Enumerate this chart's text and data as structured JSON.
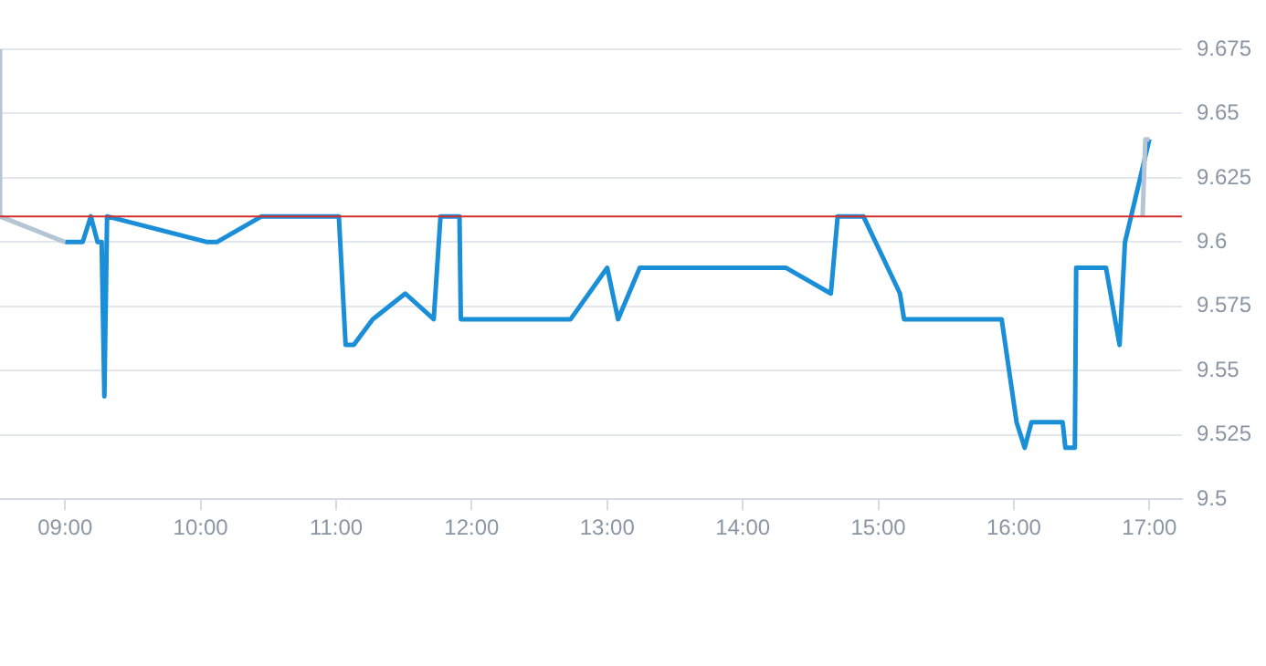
{
  "chart_data": {
    "type": "line",
    "xlim": [
      8.52,
      17.24
    ],
    "ylim": [
      9.5,
      9.675
    ],
    "xticks": [
      {
        "value": 9,
        "label": "09:00"
      },
      {
        "value": 10,
        "label": "10:00"
      },
      {
        "value": 11,
        "label": "11:00"
      },
      {
        "value": 12,
        "label": "12:00"
      },
      {
        "value": 13,
        "label": "13:00"
      },
      {
        "value": 14,
        "label": "14:00"
      },
      {
        "value": 15,
        "label": "15:00"
      },
      {
        "value": 16,
        "label": "16:00"
      },
      {
        "value": 17,
        "label": "17:00"
      }
    ],
    "yticks": [
      9.5,
      9.525,
      9.55,
      9.575,
      9.6,
      9.625,
      9.65,
      9.675
    ],
    "grid": "y",
    "legend": false,
    "marker": "none",
    "line_style": "solid",
    "ref_lines": [
      {
        "axis": "y",
        "value": 9.61,
        "color": "#d32f2f"
      }
    ],
    "series": [
      {
        "color": "#b4c6d4",
        "x": [
          8.52,
          8.52,
          9.0
        ],
        "values": [
          9.675,
          9.61,
          9.6
        ]
      },
      {
        "color": "#b4c6d4",
        "x": [
          16.95,
          16.97,
          17.0
        ],
        "values": [
          9.61,
          9.64,
          9.64
        ]
      },
      {
        "color": "#1a8fd8",
        "x": [
          9.0,
          9.13,
          9.19,
          9.24,
          9.27,
          9.29,
          9.31,
          10.05,
          10.12,
          10.45,
          11.02,
          11.07,
          11.13,
          11.27,
          11.51,
          11.72,
          11.77,
          11.91,
          11.92,
          12.73,
          13.0,
          13.08,
          13.24,
          14.32,
          14.65,
          14.7,
          14.89,
          15.16,
          15.19,
          15.91,
          16.02,
          16.08,
          16.13,
          16.36,
          16.38,
          16.45,
          16.46,
          16.68,
          16.78,
          16.82,
          17.0
        ],
        "values": [
          9.6,
          9.6,
          9.61,
          9.6,
          9.6,
          9.54,
          9.61,
          9.6,
          9.6,
          9.61,
          9.61,
          9.56,
          9.56,
          9.57,
          9.58,
          9.57,
          9.61,
          9.61,
          9.57,
          9.57,
          9.59,
          9.57,
          9.59,
          9.59,
          9.58,
          9.61,
          9.61,
          9.58,
          9.57,
          9.57,
          9.53,
          9.52,
          9.53,
          9.53,
          9.52,
          9.52,
          9.59,
          9.59,
          9.56,
          9.6,
          9.64
        ]
      }
    ]
  }
}
